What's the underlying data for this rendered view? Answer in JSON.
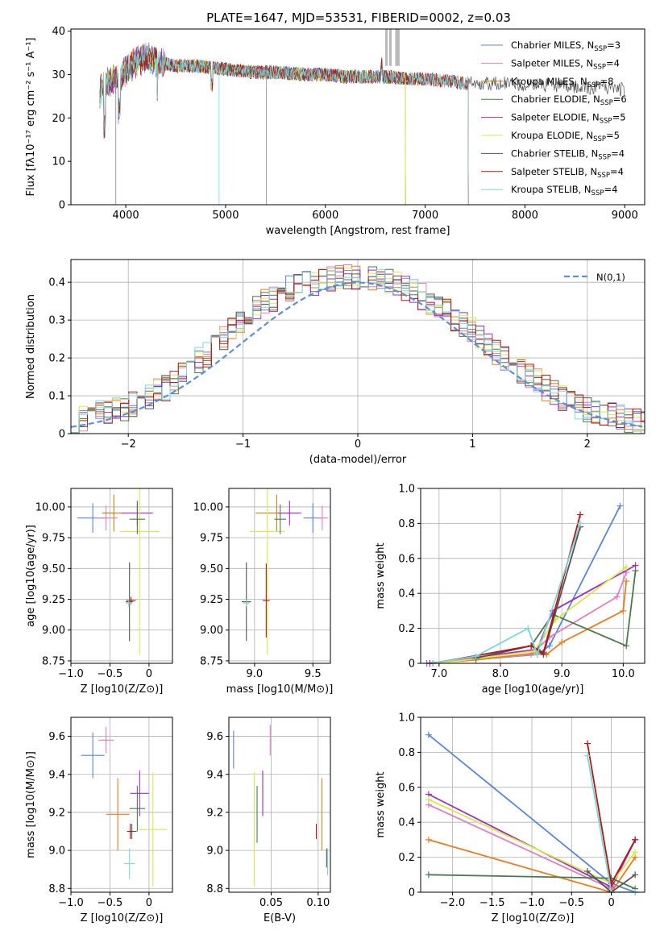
{
  "figure": {
    "title": "PLATE=1647, MJD=53531, FIBERID=0002, z=0.03"
  },
  "colors": {
    "Chabrier MILES": "#5b86d6",
    "Salpeter MILES": "#e27fbf",
    "Kroupa MILES": "#b8860b",
    "Chabrier ELODIE": "#4c7a4c",
    "Salpeter ELODIE": "#9b30c0",
    "Kroupa ELODIE": "#d8e84a",
    "Chabrier STELIB": "#555555",
    "Salpeter STELIB": "#b01818",
    "Kroupa STELIB": "#7fd6d6",
    "Orange": "#e67e22",
    "gaussian": "#5b8fd6",
    "grid": "#b0b0b0"
  },
  "chart_data": [
    {
      "id": "spectrum",
      "type": "line",
      "xlabel": "wavelength [Angstrom, rest frame]",
      "ylabel": "Flux [fλ10⁻¹⁷ erg cm⁻² s⁻¹ A⁻¹]",
      "xlim": [
        3450,
        9200
      ],
      "ylim": [
        0,
        40.5
      ],
      "xticks": [
        4000,
        5000,
        6000,
        7000,
        8000,
        9000
      ],
      "yticks": [
        0,
        10,
        20,
        30,
        40
      ],
      "legend_position": "top-right",
      "series": [
        {
          "name": "Chabrier MILES, N_SSP=3",
          "label": "Chabrier MILES, N",
          "nssp": "=3"
        },
        {
          "name": "Salpeter MILES, N_SSP=4",
          "label": "Salpeter MILES, N",
          "nssp": "=4"
        },
        {
          "name": "Kroupa MILES, N_SSP=8",
          "label": "Kroupa MILES, N",
          "nssp": "=8"
        },
        {
          "name": "Chabrier ELODIE, N_SSP=6",
          "label": "Chabrier ELODIE, N",
          "nssp": "=6"
        },
        {
          "name": "Salpeter ELODIE, N_SSP=5",
          "label": "Salpeter ELODIE, N",
          "nssp": "=5"
        },
        {
          "name": "Kroupa ELODIE, N_SSP=5",
          "label": "Kroupa ELODIE, N",
          "nssp": "=5"
        },
        {
          "name": "Chabrier STELIB, N_SSP=4",
          "label": "Chabrier STELIB, N",
          "nssp": "=4"
        },
        {
          "name": "Salpeter STELIB, N_SSP=4",
          "label": "Salpeter STELIB, N",
          "nssp": "=4"
        },
        {
          "name": "Kroupa STELIB, N_SSP=4",
          "label": "Kroupa STELIB, N",
          "nssp": "=4"
        }
      ],
      "continuum_x": [
        3740,
        3800,
        3900,
        4000,
        4100,
        4200,
        4300,
        4400,
        4500,
        4700,
        4900,
        5100,
        5300,
        5500,
        5800,
        6000,
        6200,
        6400,
        6600,
        6800,
        7000,
        7200,
        7400,
        7600,
        7800,
        8000,
        8200,
        8400,
        8600,
        8800,
        9000,
        9200
      ],
      "continuum_y": [
        26,
        28,
        29,
        31,
        33,
        34,
        33,
        32.5,
        32,
        32,
        31.5,
        31,
        30.5,
        30.5,
        30,
        30,
        29.5,
        29.5,
        29.5,
        29,
        29,
        28.5,
        28,
        28,
        28,
        27.5,
        27.5,
        27.5,
        27,
        27,
        26.5,
        26.5
      ]
    },
    {
      "id": "residuals",
      "type": "histogram",
      "xlabel": "(data-model)/error",
      "ylabel": "Normed distribution",
      "xlim": [
        -2.5,
        2.5
      ],
      "ylim": [
        0,
        0.46
      ],
      "xticks": [
        -2,
        -1,
        0,
        1,
        2
      ],
      "yticks": [
        0.0,
        0.1,
        0.2,
        0.3,
        0.4
      ],
      "legend": "N(0,1)",
      "legend_position": "top-right",
      "bin_width": 0.1,
      "bins_x_start": -2.5,
      "base_values": [
        0.035,
        0.04,
        0.045,
        0.05,
        0.05,
        0.06,
        0.065,
        0.075,
        0.085,
        0.095,
        0.105,
        0.115,
        0.13,
        0.145,
        0.165,
        0.185,
        0.2,
        0.22,
        0.24,
        0.26,
        0.28,
        0.3,
        0.315,
        0.33,
        0.34,
        0.355,
        0.365,
        0.37,
        0.375,
        0.38,
        0.385,
        0.39,
        0.39,
        0.395,
        0.395,
        0.395,
        0.39,
        0.385,
        0.38,
        0.375,
        0.365,
        0.355,
        0.345,
        0.33,
        0.32,
        0.305,
        0.29,
        0.275,
        0.26,
        0.245,
        0.225,
        0.205,
        0.19,
        0.175,
        0.16,
        0.145,
        0.13,
        0.115,
        0.105,
        0.09,
        0.08,
        0.07,
        0.06,
        0.055,
        0.05,
        0.045,
        0.04,
        0.035,
        0.03,
        0.03
      ],
      "series": [
        {
          "name": "Chabrier MILES"
        },
        {
          "name": "Salpeter MILES"
        },
        {
          "name": "Kroupa MILES"
        },
        {
          "name": "Chabrier ELODIE"
        },
        {
          "name": "Salpeter ELODIE"
        },
        {
          "name": "Kroupa ELODIE"
        },
        {
          "name": "Chabrier STELIB"
        },
        {
          "name": "Salpeter STELIB"
        },
        {
          "name": "Kroupa STELIB"
        }
      ]
    },
    {
      "id": "age_vs_Z",
      "type": "scatter",
      "xlabel": "Z [log10(Z/Z⊙)]",
      "ylabel": "age [log10(age/yr)]",
      "xlim": [
        -1.0,
        0.3
      ],
      "ylim": [
        8.73,
        10.15
      ],
      "xticks": [
        -1.0,
        -0.5,
        0.0
      ],
      "yticks": [
        8.75,
        9.0,
        9.25,
        9.5,
        9.75,
        10.0
      ],
      "points": [
        {
          "series": "Chabrier MILES",
          "x": -0.72,
          "y": 9.91,
          "xerr": 0.2,
          "yerr": 0.12
        },
        {
          "series": "Salpeter MILES",
          "x": -0.55,
          "y": 9.91,
          "xerr": 0.15,
          "yerr": 0.1
        },
        {
          "series": "Kroupa MILES",
          "x": -0.45,
          "y": 9.95,
          "xerr": 0.15,
          "yerr": 0.15
        },
        {
          "series": "Salpeter ELODIE",
          "x": -0.15,
          "y": 9.95,
          "xerr": 0.2,
          "yerr": 0.1
        },
        {
          "series": "Kroupa ELODIE",
          "x": -0.12,
          "y": 9.8,
          "xerr": 0.25,
          "yerr": 1.0
        },
        {
          "series": "Chabrier ELODIE",
          "x": -0.15,
          "y": 9.9,
          "xerr": 0.1,
          "yerr": 0.12
        },
        {
          "series": "Chabrier STELIB",
          "x": -0.25,
          "y": 9.23,
          "xerr": 0.05,
          "yerr": 0.32
        },
        {
          "series": "Salpeter STELIB",
          "x": -0.23,
          "y": 9.24,
          "xerr": 0.06,
          "yerr": 0.03
        },
        {
          "series": "Kroupa STELIB",
          "x": -0.26,
          "y": 9.22,
          "xerr": 0.04,
          "yerr": 0.03
        }
      ]
    },
    {
      "id": "age_vs_mass",
      "type": "scatter",
      "xlabel": "mass [log10(M/M⊙)]",
      "ylabel": "",
      "xlim": [
        8.78,
        9.65
      ],
      "ylim": [
        8.73,
        10.15
      ],
      "xticks": [
        9.0,
        9.5
      ],
      "yticks": [
        8.75,
        9.0,
        9.25,
        9.5,
        9.75,
        10.0
      ],
      "points": [
        {
          "series": "Chabrier MILES",
          "x": 9.5,
          "y": 9.91,
          "xerr": 0.08,
          "yerr": 0.12
        },
        {
          "series": "Salpeter MILES",
          "x": 9.58,
          "y": 9.91,
          "xerr": 0.05,
          "yerr": 0.1
        },
        {
          "series": "Kroupa MILES",
          "x": 9.19,
          "y": 9.95,
          "xerr": 0.18,
          "yerr": 0.15
        },
        {
          "series": "Salpeter ELODIE",
          "x": 9.3,
          "y": 9.95,
          "xerr": 0.1,
          "yerr": 0.1
        },
        {
          "series": "Kroupa ELODIE",
          "x": 9.11,
          "y": 9.8,
          "xerr": 0.15,
          "yerr": 1.0
        },
        {
          "series": "Chabrier ELODIE",
          "x": 9.22,
          "y": 9.9,
          "xerr": 0.05,
          "yerr": 0.12
        },
        {
          "series": "Chabrier STELIB",
          "x": 8.93,
          "y": 9.23,
          "xerr": 0.04,
          "yerr": 0.32
        },
        {
          "series": "Salpeter STELIB",
          "x": 9.1,
          "y": 9.24,
          "xerr": 0.03,
          "yerr": 0.3
        },
        {
          "series": "Kroupa STELIB",
          "x": 8.93,
          "y": 9.22,
          "xerr": 0.03,
          "yerr": 0.03
        }
      ]
    },
    {
      "id": "weight_vs_age",
      "type": "line",
      "xlabel": "age [log10(age/yr)]",
      "ylabel": "mass weight",
      "xlim": [
        6.7,
        10.35
      ],
      "ylim": [
        0,
        1.0
      ],
      "xticks": [
        7,
        8,
        9,
        10
      ],
      "yticks": [
        0.0,
        0.2,
        0.4,
        0.6,
        0.8,
        1.0
      ],
      "series": [
        {
          "name": "Chabrier MILES",
          "x": [
            6.8,
            8.6,
            8.8,
            9.95
          ],
          "y": [
            0.0,
            0.05,
            0.1,
            0.9
          ]
        },
        {
          "name": "Salpeter MILES",
          "x": [
            6.85,
            8.5,
            8.8,
            9.9,
            10.05
          ],
          "y": [
            0.0,
            0.05,
            0.15,
            0.38,
            0.52
          ]
        },
        {
          "name": "Orange",
          "x": [
            6.9,
            7.6,
            8.6,
            8.75,
            9.0,
            10.0,
            10.05
          ],
          "y": [
            0.0,
            0.02,
            0.06,
            0.05,
            0.12,
            0.3,
            0.47
          ]
        },
        {
          "name": "Chabrier ELODIE",
          "x": [
            7.6,
            8.5,
            8.85,
            10.05,
            10.2
          ],
          "y": [
            0.03,
            0.1,
            0.28,
            0.1,
            0.53
          ]
        },
        {
          "name": "Salpeter ELODIE",
          "x": [
            6.85,
            8.6,
            8.85,
            10.2
          ],
          "y": [
            0.0,
            0.08,
            0.3,
            0.56
          ]
        },
        {
          "name": "Kroupa ELODIE",
          "x": [
            7.0,
            8.55,
            8.9,
            10.05
          ],
          "y": [
            0.0,
            0.07,
            0.25,
            0.55
          ]
        },
        {
          "name": "Chabrier STELIB",
          "x": [
            7.6,
            8.5,
            8.7,
            9.3
          ],
          "y": [
            0.03,
            0.1,
            0.05,
            0.78
          ]
        },
        {
          "name": "Salpeter STELIB",
          "x": [
            6.9,
            8.5,
            8.7,
            9.3
          ],
          "y": [
            0.0,
            0.1,
            0.06,
            0.85
          ]
        },
        {
          "name": "Kroupa STELIB",
          "x": [
            6.9,
            7.6,
            8.45,
            8.6,
            9.3
          ],
          "y": [
            0.0,
            0.04,
            0.2,
            0.05,
            0.8
          ]
        }
      ]
    },
    {
      "id": "mass_vs_Z",
      "type": "scatter",
      "xlabel": "Z [log10(Z/Z⊙)]",
      "ylabel": "mass [log10(M/M⊙)]",
      "xlim": [
        -1.0,
        0.3
      ],
      "ylim": [
        8.78,
        9.7
      ],
      "xticks": [
        -1.0,
        -0.5,
        0.0
      ],
      "yticks": [
        8.8,
        9.0,
        9.2,
        9.4,
        9.6
      ],
      "points": [
        {
          "series": "Chabrier MILES",
          "x": -0.72,
          "y": 9.5,
          "xerr": 0.15,
          "yerr": 0.12
        },
        {
          "series": "Salpeter MILES",
          "x": -0.55,
          "y": 9.58,
          "xerr": 0.1,
          "yerr": 0.07
        },
        {
          "series": "Orange",
          "x": -0.4,
          "y": 9.19,
          "xerr": 0.15,
          "yerr": 0.19
        },
        {
          "series": "Salpeter ELODIE",
          "x": -0.12,
          "y": 9.3,
          "xerr": 0.12,
          "yerr": 0.12
        },
        {
          "series": "Kroupa ELODIE",
          "x": 0.05,
          "y": 9.11,
          "xerr": 0.18,
          "yerr": 0.3
        },
        {
          "series": "Chabrier ELODIE",
          "x": -0.15,
          "y": 9.22,
          "xerr": 0.1,
          "yerr": 0.12
        },
        {
          "series": "Chabrier STELIB",
          "x": -0.22,
          "y": 9.1,
          "xerr": 0.06,
          "yerr": 0.04
        },
        {
          "series": "Salpeter STELIB",
          "x": -0.24,
          "y": 9.1,
          "xerr": 0.04,
          "yerr": 0.04
        },
        {
          "series": "Kroupa STELIB",
          "x": -0.25,
          "y": 8.93,
          "xerr": 0.07,
          "yerr": 0.08
        }
      ]
    },
    {
      "id": "mass_vs_EBV",
      "type": "scatter",
      "xlabel": "E(B-V)",
      "ylabel": "",
      "xlim": [
        0.005,
        0.113
      ],
      "ylim": [
        8.78,
        9.7
      ],
      "xticks": [
        0.05,
        0.1
      ],
      "yticks": [
        8.8,
        9.0,
        9.2,
        9.4,
        9.6
      ],
      "points": [
        {
          "series": "Chabrier MILES",
          "x": 0.01,
          "y": 9.53,
          "yerr": 0.1
        },
        {
          "series": "Salpeter MILES",
          "x": 0.049,
          "y": 9.58,
          "yerr": 0.08
        },
        {
          "series": "Orange",
          "x": 0.104,
          "y": 9.19,
          "yerr": 0.19
        },
        {
          "series": "Salpeter ELODIE",
          "x": 0.041,
          "y": 9.3,
          "yerr": 0.12
        },
        {
          "series": "Kroupa ELODIE",
          "x": 0.032,
          "y": 9.11,
          "yerr": 0.3
        },
        {
          "series": "Chabrier ELODIE",
          "x": 0.035,
          "y": 9.19,
          "yerr": 0.15
        },
        {
          "series": "Salpeter STELIB",
          "x": 0.098,
          "y": 9.1,
          "yerr": 0.04
        },
        {
          "series": "Kroupa STELIB",
          "x": 0.11,
          "y": 8.94,
          "yerr": 0.07
        },
        {
          "series": "Chabrier STELIB",
          "x": 0.109,
          "y": 8.96,
          "yerr": 0.05
        }
      ]
    },
    {
      "id": "weight_vs_Z",
      "type": "line",
      "xlabel": "Z [log10(Z/Z⊙)]",
      "ylabel": "mass weight",
      "xlim": [
        -2.4,
        0.42
      ],
      "ylim": [
        0,
        1.0
      ],
      "xticks": [
        -2.0,
        -1.5,
        -1.0,
        -0.5,
        0.0
      ],
      "yticks": [
        0.0,
        0.2,
        0.4,
        0.6,
        0.8,
        1.0
      ],
      "series": [
        {
          "name": "Chabrier MILES",
          "x": [
            -2.3,
            0.0,
            0.3
          ],
          "y": [
            0.9,
            0.05,
            0.0
          ]
        },
        {
          "name": "Salpeter MILES",
          "x": [
            -2.3,
            0.0,
            0.3
          ],
          "y": [
            0.5,
            0.02,
            0.3
          ]
        },
        {
          "name": "Orange",
          "x": [
            -2.3,
            0.0,
            0.3
          ],
          "y": [
            0.3,
            0.0,
            0.2
          ]
        },
        {
          "name": "Salpeter ELODIE",
          "x": [
            -2.3,
            0.0,
            0.3
          ],
          "y": [
            0.56,
            0.03,
            0.3
          ]
        },
        {
          "name": "Kroupa ELODIE",
          "x": [
            -2.3,
            0.0,
            0.3
          ],
          "y": [
            0.53,
            0.05,
            0.23
          ]
        },
        {
          "name": "Chabrier ELODIE",
          "x": [
            -2.3,
            0.0,
            0.3
          ],
          "y": [
            0.1,
            0.08,
            0.02
          ]
        },
        {
          "name": "Chabrier STELIB",
          "x": [
            -0.3,
            0.0,
            0.3
          ],
          "y": [
            0.12,
            0.0,
            0.1
          ]
        },
        {
          "name": "Salpeter STELIB",
          "x": [
            -0.3,
            0.0,
            0.3
          ],
          "y": [
            0.85,
            0.05,
            0.3
          ]
        },
        {
          "name": "Kroupa STELIB",
          "x": [
            -0.3,
            0.0,
            0.3
          ],
          "y": [
            0.78,
            0.0,
            0.0
          ]
        }
      ]
    }
  ]
}
